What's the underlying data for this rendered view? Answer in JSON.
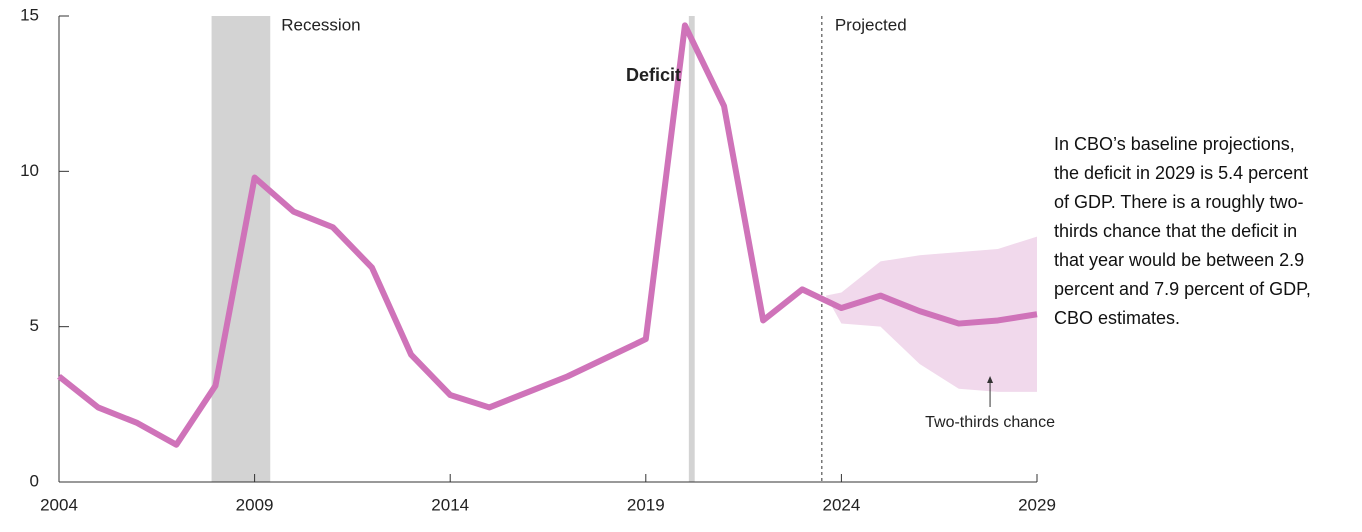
{
  "chart_data": {
    "type": "line",
    "x": [
      2004,
      2005,
      2006,
      2007,
      2008,
      2009,
      2010,
      2011,
      2012,
      2013,
      2014,
      2015,
      2016,
      2017,
      2018,
      2019,
      2020,
      2021,
      2022,
      2023,
      2024,
      2025,
      2026,
      2027,
      2028,
      2029
    ],
    "series": [
      {
        "name": "Deficit",
        "color": "#cf73b9",
        "values": [
          3.4,
          2.4,
          1.9,
          1.2,
          3.1,
          9.8,
          8.7,
          8.2,
          6.9,
          4.1,
          2.8,
          2.4,
          2.9,
          3.4,
          4.0,
          4.6,
          14.7,
          12.1,
          5.2,
          6.2,
          5.6,
          6.0,
          5.5,
          5.1,
          5.2,
          5.4
        ]
      }
    ],
    "band": {
      "name": "Two-thirds chance",
      "color": "#f1d9ec",
      "x": [
        2023.6,
        2024,
        2025,
        2026,
        2027,
        2028,
        2029
      ],
      "lower": [
        6.0,
        5.1,
        5.0,
        3.8,
        3.0,
        2.9,
        2.9
      ],
      "upper": [
        6.0,
        6.1,
        7.1,
        7.3,
        7.4,
        7.5,
        7.9
      ]
    },
    "recessions": [
      [
        2007.9,
        2009.4
      ],
      [
        2020.1,
        2020.25
      ]
    ],
    "recession_label": "Recession",
    "recession_color": "#d3d3d3",
    "projection_start": 2023.5,
    "projection_label": "Projected",
    "xlim": [
      2004,
      2029
    ],
    "xticks": [
      2004,
      2009,
      2014,
      2019,
      2024,
      2029
    ],
    "ylim": [
      0,
      15
    ],
    "yticks": [
      0,
      5,
      10,
      15
    ],
    "grid": false,
    "annotation": "In CBO’s baseline projections, the deficit in 2029 is 5.4 percent of GDP. There is a roughly two-thirds chance that the deficit in that year would be between 2.9 percent and 7.9 percent of GDP, CBO estimates."
  }
}
